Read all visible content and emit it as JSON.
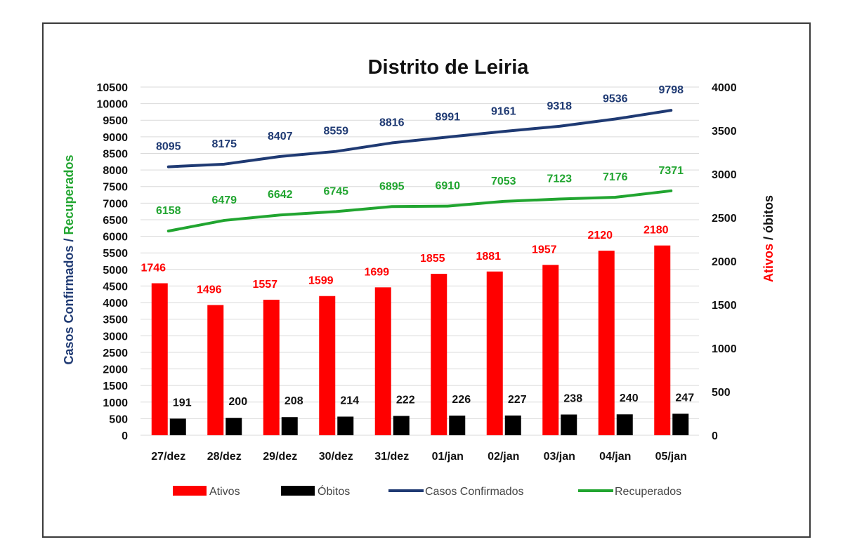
{
  "chart_data": {
    "type": "bar",
    "title": "Distrito de Leiria",
    "categories": [
      "27/dez",
      "28/dez",
      "29/dez",
      "30/dez",
      "31/dez",
      "01/jan",
      "02/jan",
      "03/jan",
      "04/jan",
      "05/jan"
    ],
    "ylabel_left": {
      "part1": "Casos Confirmados",
      "separator": " / ",
      "part2": "Recuperados",
      "color1": "#1f3a73",
      "color2": "#21a530"
    },
    "ylabel_right": {
      "part1": "Ativos",
      "separator": " / ",
      "part2": "óbitos",
      "color1": "#ff0000",
      "color2": "#111111"
    },
    "ylim_left": [
      0,
      10500
    ],
    "yticks_left": [
      0,
      500,
      1000,
      1500,
      2000,
      2500,
      3000,
      3500,
      4000,
      4500,
      5000,
      5500,
      6000,
      6500,
      7000,
      7500,
      8000,
      8500,
      9000,
      9500,
      10000,
      10500
    ],
    "ylim_right": [
      0,
      4000
    ],
    "yticks_right": [
      0,
      500,
      1000,
      1500,
      2000,
      2500,
      3000,
      3500,
      4000
    ],
    "grid": true,
    "legend_position": "bottom",
    "series": [
      {
        "name": "Ativos",
        "kind": "bar",
        "axis": "right",
        "color": "#ff0000",
        "values": [
          1746,
          1496,
          1557,
          1599,
          1699,
          1855,
          1881,
          1957,
          2120,
          2180
        ]
      },
      {
        "name": "Óbitos",
        "kind": "bar",
        "axis": "right",
        "color": "#000000",
        "values": [
          191,
          200,
          208,
          214,
          222,
          226,
          227,
          238,
          240,
          247
        ]
      },
      {
        "name": "Casos Confirmados",
        "kind": "line",
        "axis": "left",
        "color": "#1f3a73",
        "values": [
          8095,
          8175,
          8407,
          8559,
          8816,
          8991,
          9161,
          9318,
          9536,
          9798
        ]
      },
      {
        "name": "Recuperados",
        "kind": "line",
        "axis": "left",
        "color": "#21a530",
        "values": [
          6158,
          6479,
          6642,
          6745,
          6895,
          6910,
          7053,
          7123,
          7176,
          7371
        ]
      }
    ]
  }
}
